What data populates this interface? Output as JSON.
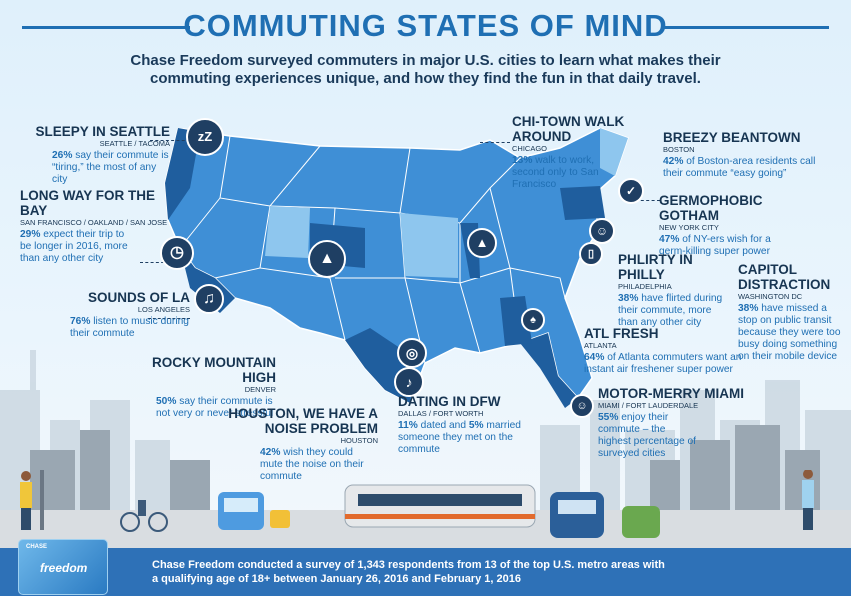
{
  "header": {
    "title": "COMMUTING STATES OF MIND",
    "subtitle": "Chase Freedom surveyed commuters in major U.S. cities to learn what makes their commuting experiences unique, and how they find the fun in that daily travel."
  },
  "callouts": {
    "seattle": {
      "heading": "SLEEPY IN SEATTLE",
      "city": "SEATTLE / TACOMA",
      "stat": "26%",
      "text": " say their commute is “tiring,” the most of any city"
    },
    "bay": {
      "heading": "LONG WAY FOR THE BAY",
      "city": "SAN FRANCISCO / OAKLAND / SAN JOSE",
      "stat": "29%",
      "text": " expect their trip to be longer in 2016, more than any other city"
    },
    "la": {
      "heading": "SOUNDS OF LA",
      "city": "LOS ANGELES",
      "stat": "76%",
      "text": " listen to music during their commute"
    },
    "denver": {
      "heading": "ROCKY MOUNTAIN HIGH",
      "city": "DENVER",
      "stat": "50%",
      "text": " say their commute is not very or never stressful"
    },
    "houston": {
      "heading": "HOUSTON, WE HAVE A NOISE PROBLEM",
      "city": "HOUSTON",
      "stat": "42%",
      "text": " wish they could mute the noise on their commute"
    },
    "dfw": {
      "heading": "DATING IN DFW",
      "city": "DALLAS / FORT WORTH",
      "stat": "11%",
      "mid": " dated and ",
      "stat2": "5%",
      "text": " married someone they met on the commute"
    },
    "chicago": {
      "heading": "CHI-TOWN WALK AROUND",
      "city": "CHICAGO",
      "stat": "13%",
      "text": " walk to work, second only to San Francisco"
    },
    "boston": {
      "heading": "BREEZY BEANTOWN",
      "city": "BOSTON",
      "stat": "42%",
      "text": " of Boston-area residents call their commute “easy going”"
    },
    "nyc": {
      "heading": "GERMOPHOBIC GOTHAM",
      "city": "NEW YORK CITY",
      "stat": "47%",
      "text": " of NY-ers wish for a germ-killing super power"
    },
    "philly": {
      "heading": "PHLIRTY IN PHILLY",
      "city": "PHILADELPHIA",
      "stat": "38%",
      "text": " have flirted during their commute, more than any other city"
    },
    "dc": {
      "heading": "CAPITOL DISTRACTION",
      "city": "WASHINGTON DC",
      "stat": "38%",
      "text": " have missed a stop on public transit because they were too busy doing something on their mobile device"
    },
    "atlanta": {
      "heading": "ATL FRESH",
      "city": "ATLANTA",
      "stat": "64%",
      "text": " of Atlanta commuters want an instant air freshener super power"
    },
    "miami": {
      "heading": "MOTOR-MERRY MIAMI",
      "city": "MIAMI / FORT LAUDERDALE",
      "stat": "55%",
      "text": " enjoy their commute – the highest percentage of surveyed cities"
    }
  },
  "footer": {
    "text": "Chase Freedom conducted a survey of 1,343 respondents from 13 of the top U.S. metro areas with a qualifying age of 18+ between January 26, 2016 and February 1, 2016",
    "card_brand": "CHASE",
    "card_name": "freedom"
  },
  "colors": {
    "title": "#1f6fb3",
    "map_dark": "#1f5e9e",
    "map_mid": "#3f8fd6",
    "map_light": "#8ec6ee",
    "footer": "#2e71b7"
  },
  "icons": [
    "sleep-zz-icon",
    "clock-icon",
    "music-note-icon",
    "mountain-icon",
    "bell-icon",
    "rings-icon",
    "sneaker-icon",
    "thumbs-up-icon",
    "germ-icon",
    "smartphone-icon",
    "air-freshener-icon",
    "smiley-icon"
  ]
}
